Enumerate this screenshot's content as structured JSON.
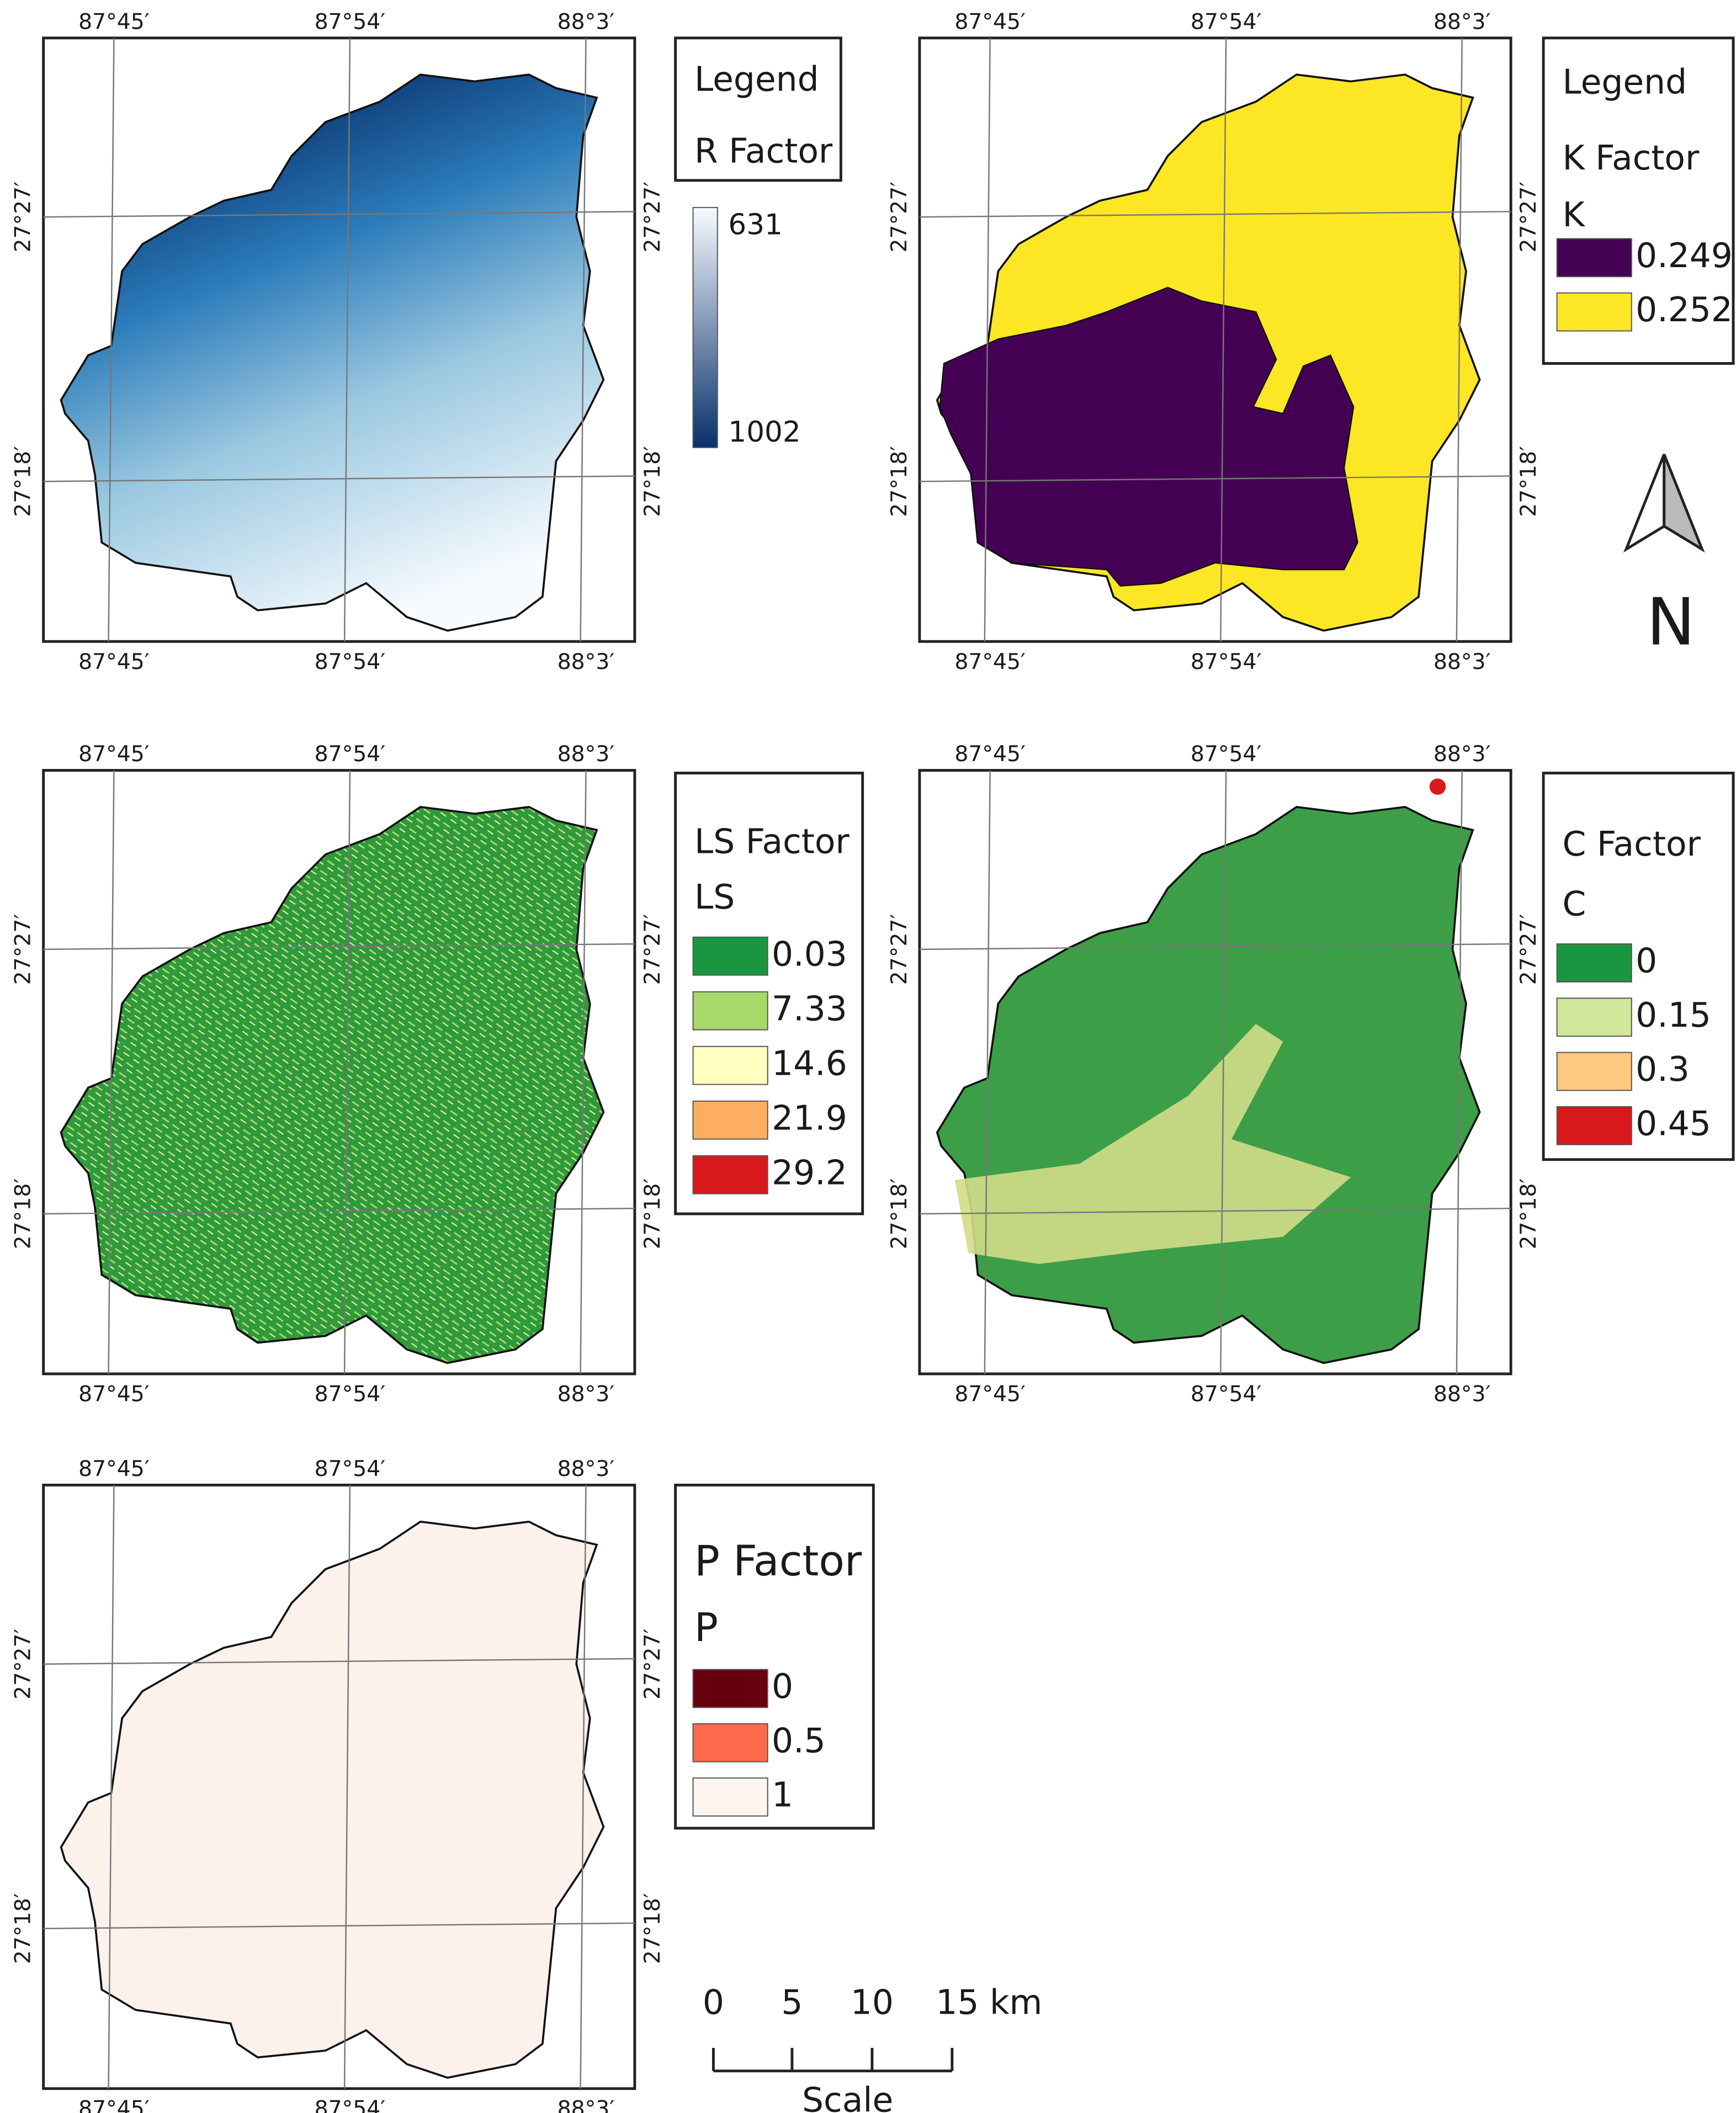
{
  "graticule": {
    "longitude_labels": [
      "87°45′",
      "87°54′",
      "88°3′"
    ],
    "latitude_labels": [
      "27°27′",
      "27°18′"
    ]
  },
  "panels": [
    {
      "legend_heading": "Legend",
      "title": "R Factor",
      "ramp": {
        "light_value": 631,
        "dark_value": 1002,
        "light_color": "#f7fbff",
        "dark_color": "#08306b"
      }
    },
    {
      "legend_heading": "Legend",
      "title": "K Factor",
      "subtitle": "K",
      "classes": [
        {
          "value": 0.249,
          "color": "#440154"
        },
        {
          "value": 0.252,
          "color": "#fde725"
        }
      ]
    },
    {
      "title": "LS Factor",
      "subtitle": "LS",
      "classes": [
        {
          "value": 0.03,
          "color": "#1a9641"
        },
        {
          "value": 7.33,
          "color": "#a6d96a"
        },
        {
          "value": 14.6,
          "color": "#ffffc0"
        },
        {
          "value": 21.9,
          "color": "#fdae61"
        },
        {
          "value": 29.2,
          "color": "#d7191c"
        }
      ]
    },
    {
      "title": "C Factor",
      "subtitle": "C",
      "classes": [
        {
          "value": 0,
          "color": "#1a9641"
        },
        {
          "value": 0.15,
          "color": "#d1e89b"
        },
        {
          "value": 0.3,
          "color": "#fdc980"
        },
        {
          "value": 0.45,
          "color": "#d7191c"
        }
      ]
    },
    {
      "title": "P Factor",
      "subtitle": "P",
      "classes": [
        {
          "value": 0,
          "color": "#67000d"
        },
        {
          "value": 0.5,
          "color": "#fb6a4a"
        },
        {
          "value": 1,
          "color": "#fff5f0"
        }
      ]
    }
  ],
  "north_arrow": {
    "label": "N"
  },
  "scale_bar": {
    "labels": [
      0,
      5,
      10,
      "15 km"
    ],
    "title": "Scale"
  }
}
